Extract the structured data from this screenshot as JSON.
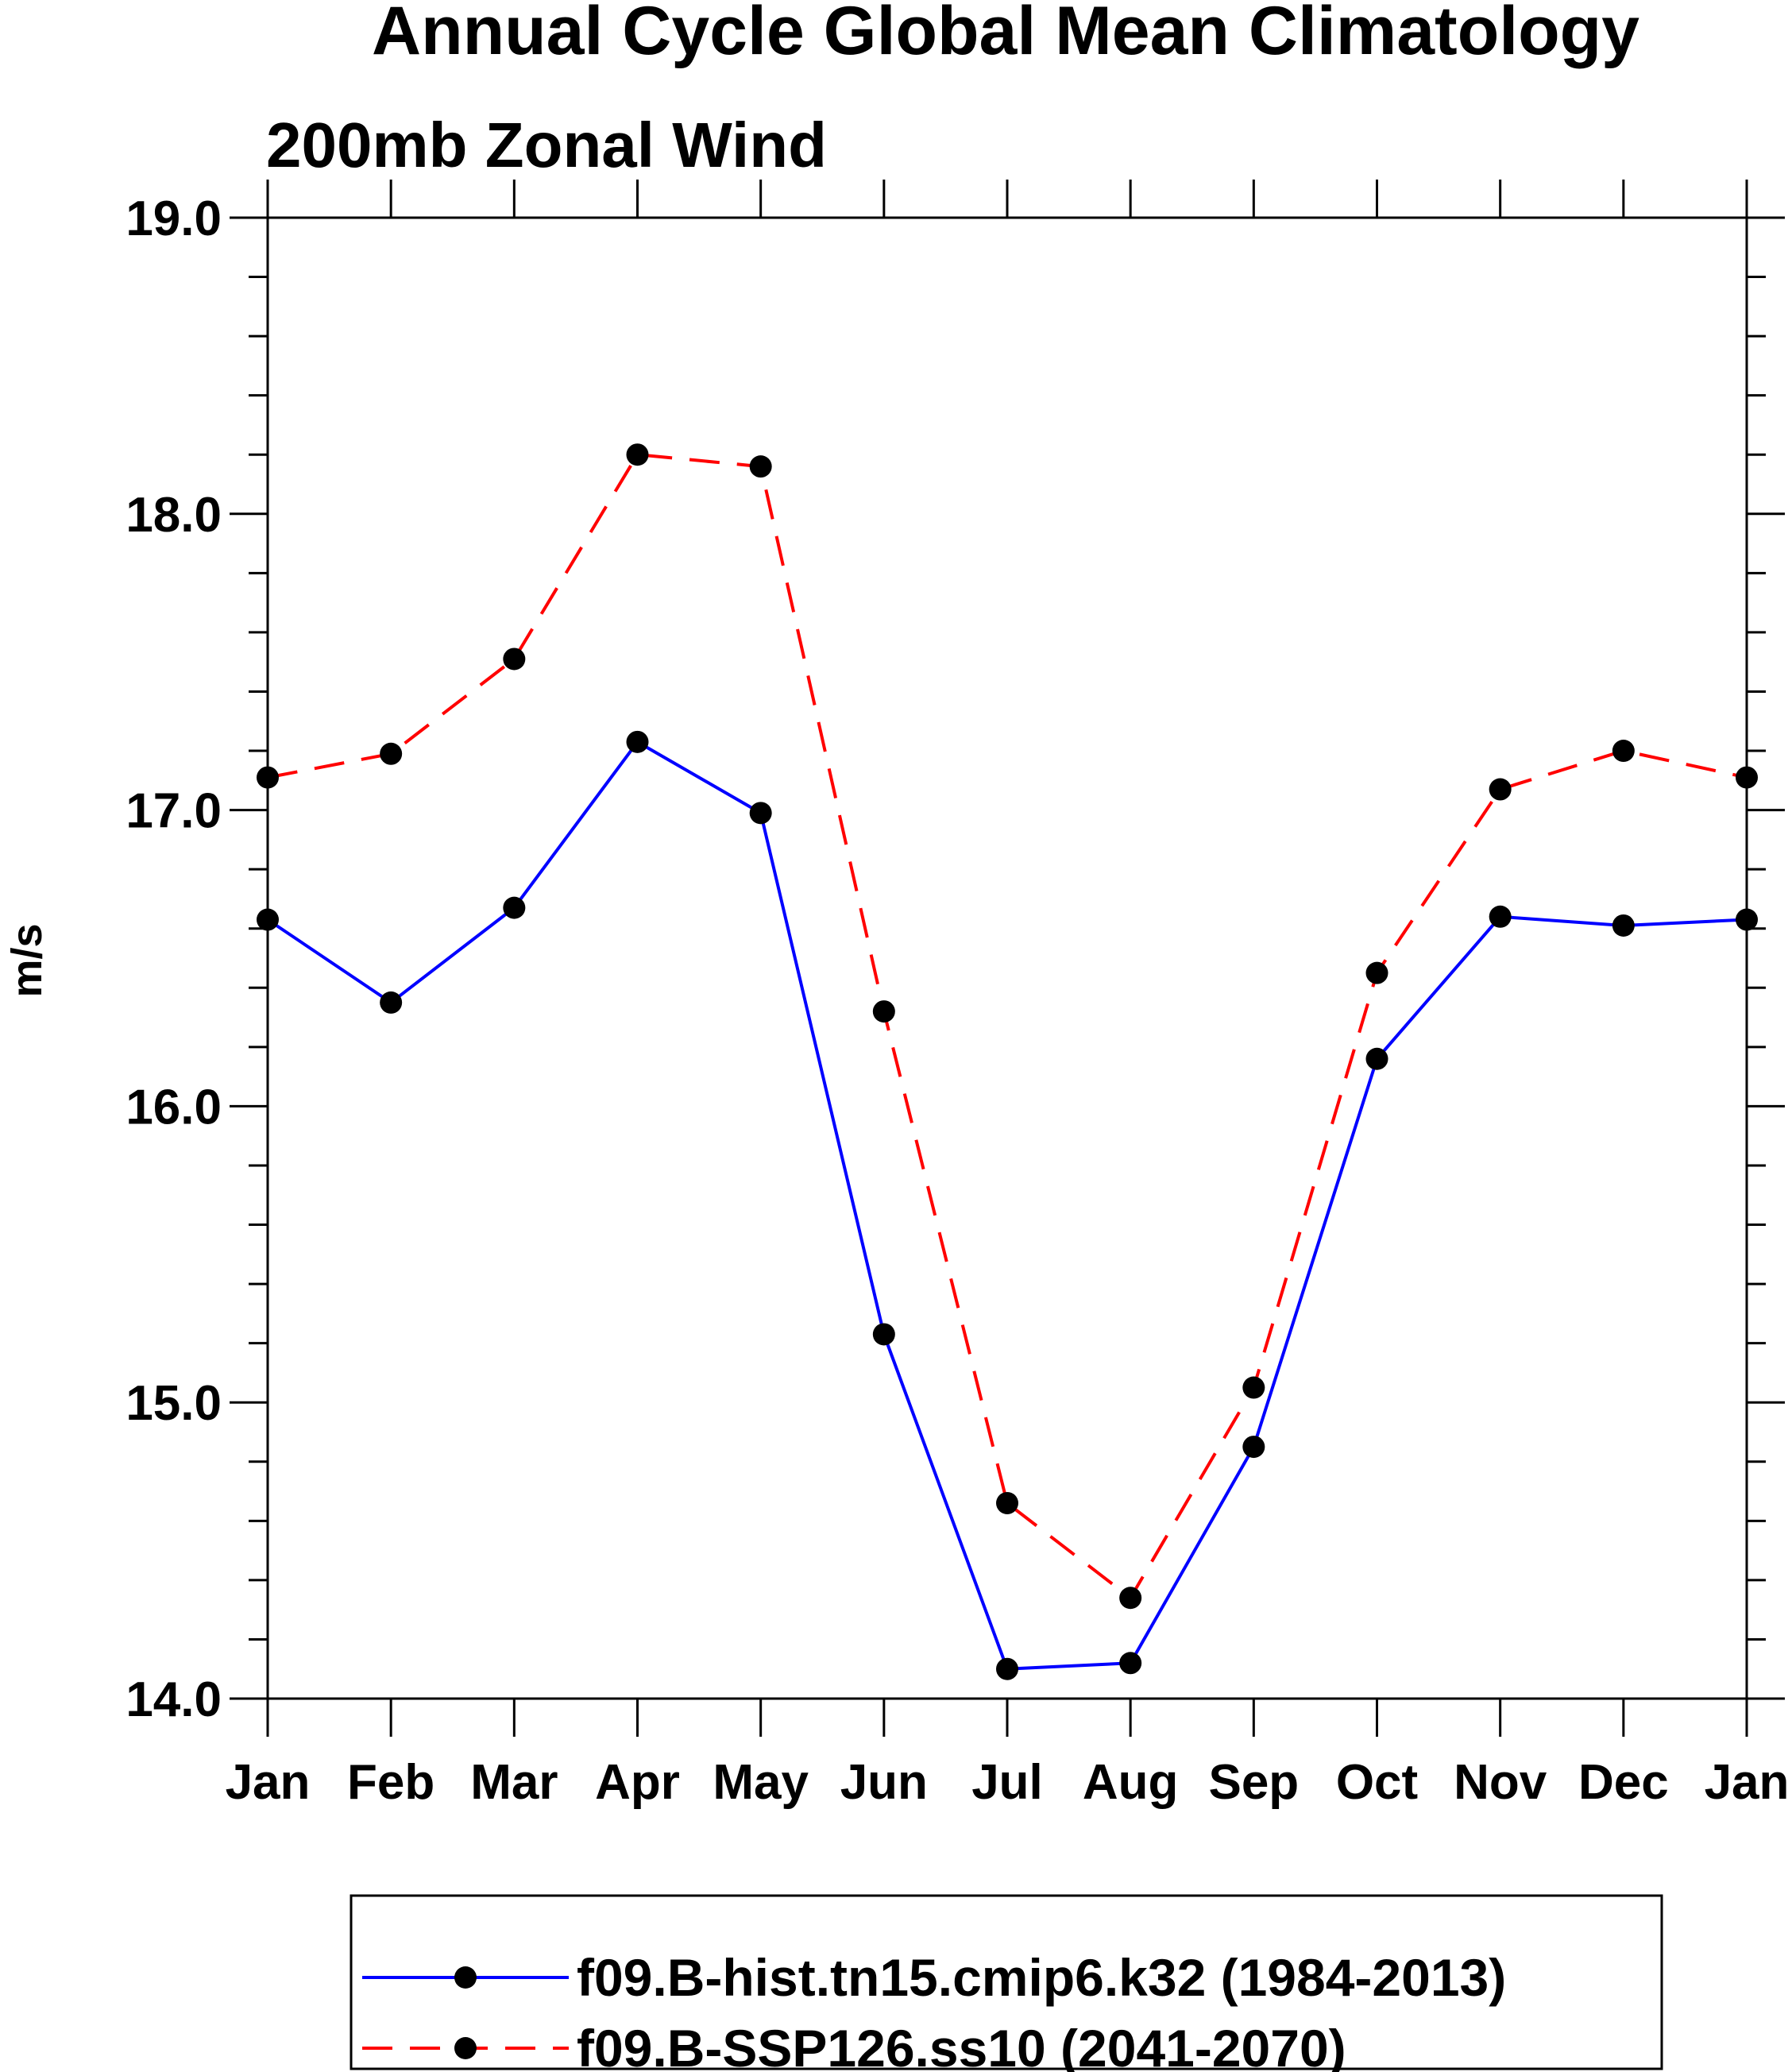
{
  "chart_data": {
    "type": "line",
    "title": "Annual Cycle Global Mean Climatology",
    "subtitle": "200mb Zonal Wind",
    "xlabel": "",
    "ylabel": "m/s",
    "categories": [
      "Jan",
      "Feb",
      "Mar",
      "Apr",
      "May",
      "Jun",
      "Jul",
      "Aug",
      "Sep",
      "Oct",
      "Nov",
      "Dec",
      "Jan"
    ],
    "ylim": [
      14.0,
      19.0
    ],
    "y_ticks": [
      "14.0",
      "15.0",
      "16.0",
      "17.0",
      "18.0",
      "19.0"
    ],
    "y_minor_step": 0.2,
    "grid": false,
    "legend_position": "bottom",
    "series": [
      {
        "name": "f09.B-hist.tn15.cmip6.k32 (1984-2013)",
        "color": "#0000ff",
        "style": "solid",
        "marker": "filled-circle",
        "values": [
          16.63,
          16.35,
          16.67,
          17.23,
          16.99,
          15.23,
          14.1,
          14.12,
          14.85,
          16.16,
          16.64,
          16.61,
          16.63
        ]
      },
      {
        "name": "f09.B-SSP126.ss10 (2041-2070)",
        "color": "#ff0000",
        "style": "dashed",
        "marker": "filled-circle",
        "values": [
          17.11,
          17.19,
          17.51,
          18.2,
          18.16,
          16.32,
          14.66,
          14.34,
          15.05,
          16.45,
          17.07,
          17.2,
          17.11
        ]
      }
    ]
  }
}
